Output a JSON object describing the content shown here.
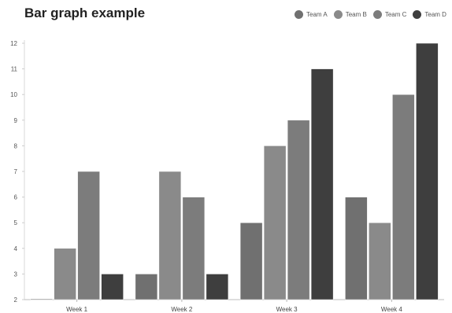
{
  "chart_data": {
    "type": "bar",
    "title": "Bar graph example",
    "xlabel": "",
    "ylabel": "",
    "categories": [
      "Week 1",
      "Week 2",
      "Week 3",
      "Week 4"
    ],
    "series": [
      {
        "name": "Team A",
        "values": [
          2,
          3,
          5,
          6
        ],
        "color": "#707070"
      },
      {
        "name": "Team B",
        "values": [
          4,
          7,
          8,
          5
        ],
        "color": "#8a8a8a"
      },
      {
        "name": "Team C",
        "values": [
          7,
          6,
          9,
          10
        ],
        "color": "#7c7c7c"
      },
      {
        "name": "Team D",
        "values": [
          3,
          3,
          11,
          12
        ],
        "color": "#3e3e3e"
      }
    ],
    "ylim": [
      2,
      12
    ],
    "yticks": [
      2,
      3,
      4,
      5,
      6,
      7,
      8,
      9,
      10,
      11,
      12
    ],
    "grid": false,
    "legend_position": "top-right"
  }
}
